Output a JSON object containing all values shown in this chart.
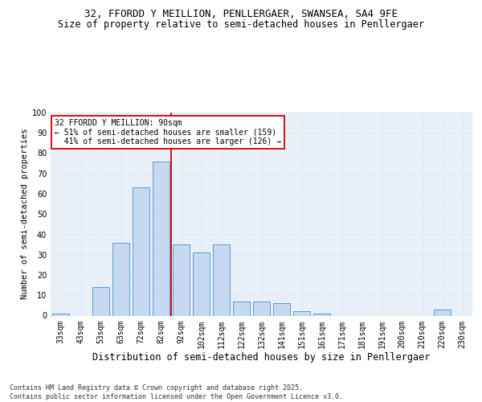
{
  "title_line1": "32, FFORDD Y MEILLION, PENLLERGAER, SWANSEA, SA4 9FE",
  "title_line2": "Size of property relative to semi-detached houses in Penllergaer",
  "xlabel": "Distribution of semi-detached houses by size in Penllergaer",
  "ylabel": "Number of semi-detached properties",
  "bins": [
    "33sqm",
    "43sqm",
    "53sqm",
    "63sqm",
    "72sqm",
    "82sqm",
    "92sqm",
    "102sqm",
    "112sqm",
    "122sqm",
    "132sqm",
    "141sqm",
    "151sqm",
    "161sqm",
    "171sqm",
    "181sqm",
    "191sqm",
    "200sqm",
    "210sqm",
    "220sqm",
    "230sqm"
  ],
  "values": [
    1,
    0,
    14,
    36,
    63,
    76,
    35,
    31,
    35,
    7,
    7,
    6,
    2,
    1,
    0,
    0,
    0,
    0,
    0,
    3,
    0
  ],
  "bar_color": "#c6d9f1",
  "bar_edge_color": "#5b9bd5",
  "red_line_x": 5.5,
  "annotation_text": "32 FFORDD Y MEILLION: 90sqm\n← 51% of semi-detached houses are smaller (159)\n  41% of semi-detached houses are larger (126) →",
  "annotation_box_facecolor": "#ffffff",
  "annotation_box_edgecolor": "#cc0000",
  "grid_color": "#dce6f5",
  "plot_bg_color": "#eaf0f8",
  "ylim": [
    0,
    100
  ],
  "yticks": [
    0,
    10,
    20,
    30,
    40,
    50,
    60,
    70,
    80,
    90,
    100
  ],
  "footer_text": "Contains HM Land Registry data © Crown copyright and database right 2025.\nContains public sector information licensed under the Open Government Licence v3.0.",
  "title_fontsize": 9,
  "subtitle_fontsize": 8.5,
  "xlabel_fontsize": 8.5,
  "ylabel_fontsize": 7.5,
  "tick_fontsize": 7,
  "annotation_fontsize": 7,
  "footer_fontsize": 6
}
